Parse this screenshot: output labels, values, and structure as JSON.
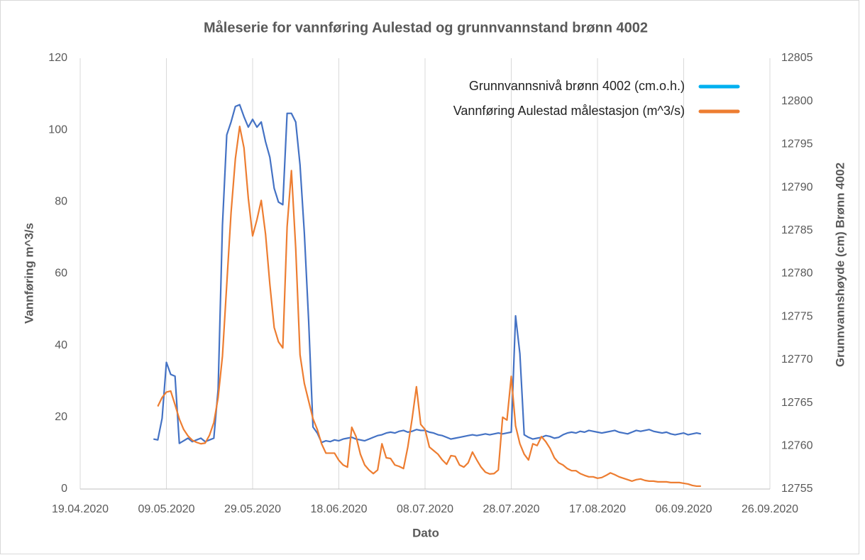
{
  "chart_data": {
    "type": "line",
    "title": "Måleserie for vannføring Aulestad og grunnvannstand brønn 4002",
    "xlabel": "Dato",
    "ylabel": "Vannføring m^3/s",
    "y2label": "Grunnvannshøyde (cm) Brønn 4002",
    "x": [
      "06.05.2020",
      "07.05.2020",
      "08.05.2020",
      "09.05.2020",
      "10.05.2020",
      "11.05.2020",
      "12.05.2020",
      "13.05.2020",
      "14.05.2020",
      "15.05.2020",
      "16.05.2020",
      "17.05.2020",
      "18.05.2020",
      "19.05.2020",
      "20.05.2020",
      "21.05.2020",
      "22.05.2020",
      "23.05.2020",
      "24.05.2020",
      "25.05.2020",
      "26.05.2020",
      "27.05.2020",
      "28.05.2020",
      "29.05.2020",
      "30.05.2020",
      "31.05.2020",
      "01.06.2020",
      "02.06.2020",
      "03.06.2020",
      "04.06.2020",
      "05.06.2020",
      "06.06.2020",
      "07.06.2020",
      "08.06.2020",
      "09.06.2020",
      "10.06.2020",
      "11.06.2020",
      "12.06.2020",
      "13.06.2020",
      "14.06.2020",
      "15.06.2020",
      "16.06.2020",
      "17.06.2020",
      "18.06.2020",
      "19.06.2020",
      "20.06.2020",
      "21.06.2020",
      "22.06.2020",
      "23.06.2020",
      "24.06.2020",
      "25.06.2020",
      "26.06.2020",
      "27.06.2020",
      "28.06.2020",
      "29.06.2020",
      "30.06.2020",
      "01.07.2020",
      "02.07.2020",
      "03.07.2020",
      "04.07.2020",
      "05.07.2020",
      "06.07.2020",
      "07.07.2020",
      "08.07.2020",
      "09.07.2020",
      "10.07.2020",
      "11.07.2020",
      "12.07.2020",
      "13.07.2020",
      "14.07.2020",
      "15.07.2020",
      "16.07.2020",
      "17.07.2020",
      "18.07.2020",
      "19.07.2020",
      "20.07.2020",
      "21.07.2020",
      "22.07.2020",
      "23.07.2020",
      "24.07.2020",
      "25.07.2020",
      "26.07.2020",
      "27.07.2020",
      "28.07.2020",
      "29.07.2020",
      "30.07.2020",
      "31.07.2020",
      "01.08.2020",
      "02.08.2020",
      "03.08.2020",
      "04.08.2020",
      "05.08.2020",
      "06.08.2020",
      "07.08.2020",
      "08.08.2020",
      "09.08.2020",
      "10.08.2020",
      "11.08.2020",
      "12.08.2020",
      "13.08.2020",
      "14.08.2020",
      "15.08.2020",
      "16.08.2020",
      "17.08.2020",
      "18.08.2020",
      "19.08.2020",
      "20.08.2020",
      "21.08.2020",
      "22.08.2020",
      "23.08.2020",
      "24.08.2020",
      "25.08.2020",
      "26.08.2020",
      "27.08.2020",
      "28.08.2020",
      "29.08.2020",
      "30.08.2020",
      "31.08.2020",
      "01.09.2020",
      "02.09.2020",
      "03.09.2020",
      "04.09.2020",
      "05.09.2020",
      "06.09.2020",
      "07.09.2020",
      "08.09.2020",
      "09.09.2020",
      "10.09.2020"
    ],
    "series": [
      {
        "name": "Grunnvannsnivå brønn 4002 (cm.o.h.)",
        "color": "#4472c4",
        "legend_color": "#00b0f0",
        "axis": "y2",
        "values": [
          12760.8,
          12760.7,
          12763.2,
          12769.7,
          12768.3,
          12768.1,
          12760.3,
          12760.6,
          12760.9,
          12760.5,
          12760.7,
          12760.9,
          12760.5,
          12760.7,
          12760.9,
          12766.6,
          12785.6,
          12796.1,
          12797.6,
          12799.4,
          12799.6,
          12798.2,
          12797,
          12797.9,
          12797,
          12797.6,
          12795.3,
          12793.5,
          12789.9,
          12788.3,
          12788,
          12798.6,
          12798.6,
          12797.6,
          12792.6,
          12784.7,
          12774.5,
          12762.2,
          12761.5,
          12760.4,
          12760.6,
          12760.5,
          12760.7,
          12760.6,
          12760.8,
          12760.9,
          12761.0,
          12760.8,
          12760.7,
          12760.6,
          12760.8,
          12761.0,
          12761.2,
          12761.3,
          12761.5,
          12761.6,
          12761.5,
          12761.7,
          12761.8,
          12761.6,
          12761.7,
          12761.9,
          12761.8,
          12761.8,
          12761.6,
          12761.5,
          12761.3,
          12761.2,
          12761.0,
          12760.8,
          12760.9,
          12761.0,
          12761.1,
          12761.2,
          12761.3,
          12761.2,
          12761.3,
          12761.4,
          12761.3,
          12761.4,
          12761.5,
          12761.4,
          12761.5,
          12761.6,
          12775.1,
          12770.7,
          12761.3,
          12761.0,
          12760.8,
          12760.9,
          12761.0,
          12761.2,
          12761.1,
          12760.9,
          12761.0,
          12761.3,
          12761.5,
          12761.6,
          12761.5,
          12761.7,
          12761.6,
          12761.8,
          12761.7,
          12761.6,
          12761.5,
          12761.6,
          12761.7,
          12761.8,
          12761.6,
          12761.5,
          12761.4,
          12761.6,
          12761.8,
          12761.7,
          12761.8,
          12761.9,
          12761.7,
          12761.6,
          12761.5,
          12761.6,
          12761.4,
          12761.3,
          12761.4,
          12761.5,
          12761.3,
          12761.4,
          12761.5,
          12761.4
        ]
      },
      {
        "name": "Vannføring Aulestad målestasjon (m^3/s)",
        "color": "#ed7d31",
        "values": [
          null,
          23,
          25.5,
          27,
          27.3,
          23.5,
          19.5,
          16.6,
          14.8,
          13.6,
          13,
          12.6,
          12.8,
          15,
          18.5,
          25.5,
          37,
          57,
          77,
          92,
          101,
          95,
          81,
          70.5,
          75,
          80.4,
          71,
          57,
          45,
          41,
          39.3,
          73,
          88.7,
          67,
          37.4,
          29.4,
          24.5,
          19.6,
          16.6,
          12.6,
          10,
          10,
          10,
          8,
          6.7,
          6.1,
          17.2,
          14.6,
          9.7,
          6.7,
          5.3,
          4.3,
          5.3,
          12.6,
          8.7,
          8.5,
          6.7,
          6.3,
          5.7,
          11.7,
          19.6,
          28.5,
          18,
          16.6,
          11.7,
          10.7,
          9.7,
          8.1,
          6.9,
          9.3,
          9.1,
          6.7,
          6.1,
          7.3,
          10.3,
          8.1,
          6.1,
          4.7,
          4.2,
          4.3,
          5.3,
          20,
          19.2,
          31.4,
          17.6,
          12.6,
          9.7,
          8.1,
          12.6,
          12.1,
          14.6,
          13.2,
          11.3,
          8.7,
          7.3,
          6.7,
          5.7,
          5.1,
          5.1,
          4.3,
          3.8,
          3.4,
          3.4,
          3,
          3.2,
          3.8,
          4.5,
          4,
          3.4,
          3,
          2.6,
          2.2,
          2.6,
          2.8,
          2.4,
          2.2,
          2.2,
          2,
          2,
          2,
          1.8,
          1.8,
          1.8,
          1.6,
          1.4,
          1,
          0.8,
          0.8
        ]
      }
    ],
    "xlim": [
      "19.04.2020",
      "26.09.2020"
    ],
    "xticks": [
      "19.04.2020",
      "09.05.2020",
      "29.05.2020",
      "18.06.2020",
      "08.07.2020",
      "28.07.2020",
      "17.08.2020",
      "06.09.2020",
      "26.09.2020"
    ],
    "ylim": [
      0,
      120
    ],
    "yticks": [
      0,
      20,
      40,
      60,
      80,
      100,
      120
    ],
    "y2lim": [
      12755,
      12805
    ],
    "y2ticks": [
      12755,
      12760,
      12765,
      12770,
      12775,
      12780,
      12785,
      12790,
      12795,
      12800,
      12805
    ],
    "grid": "x",
    "legend": "upper right"
  }
}
